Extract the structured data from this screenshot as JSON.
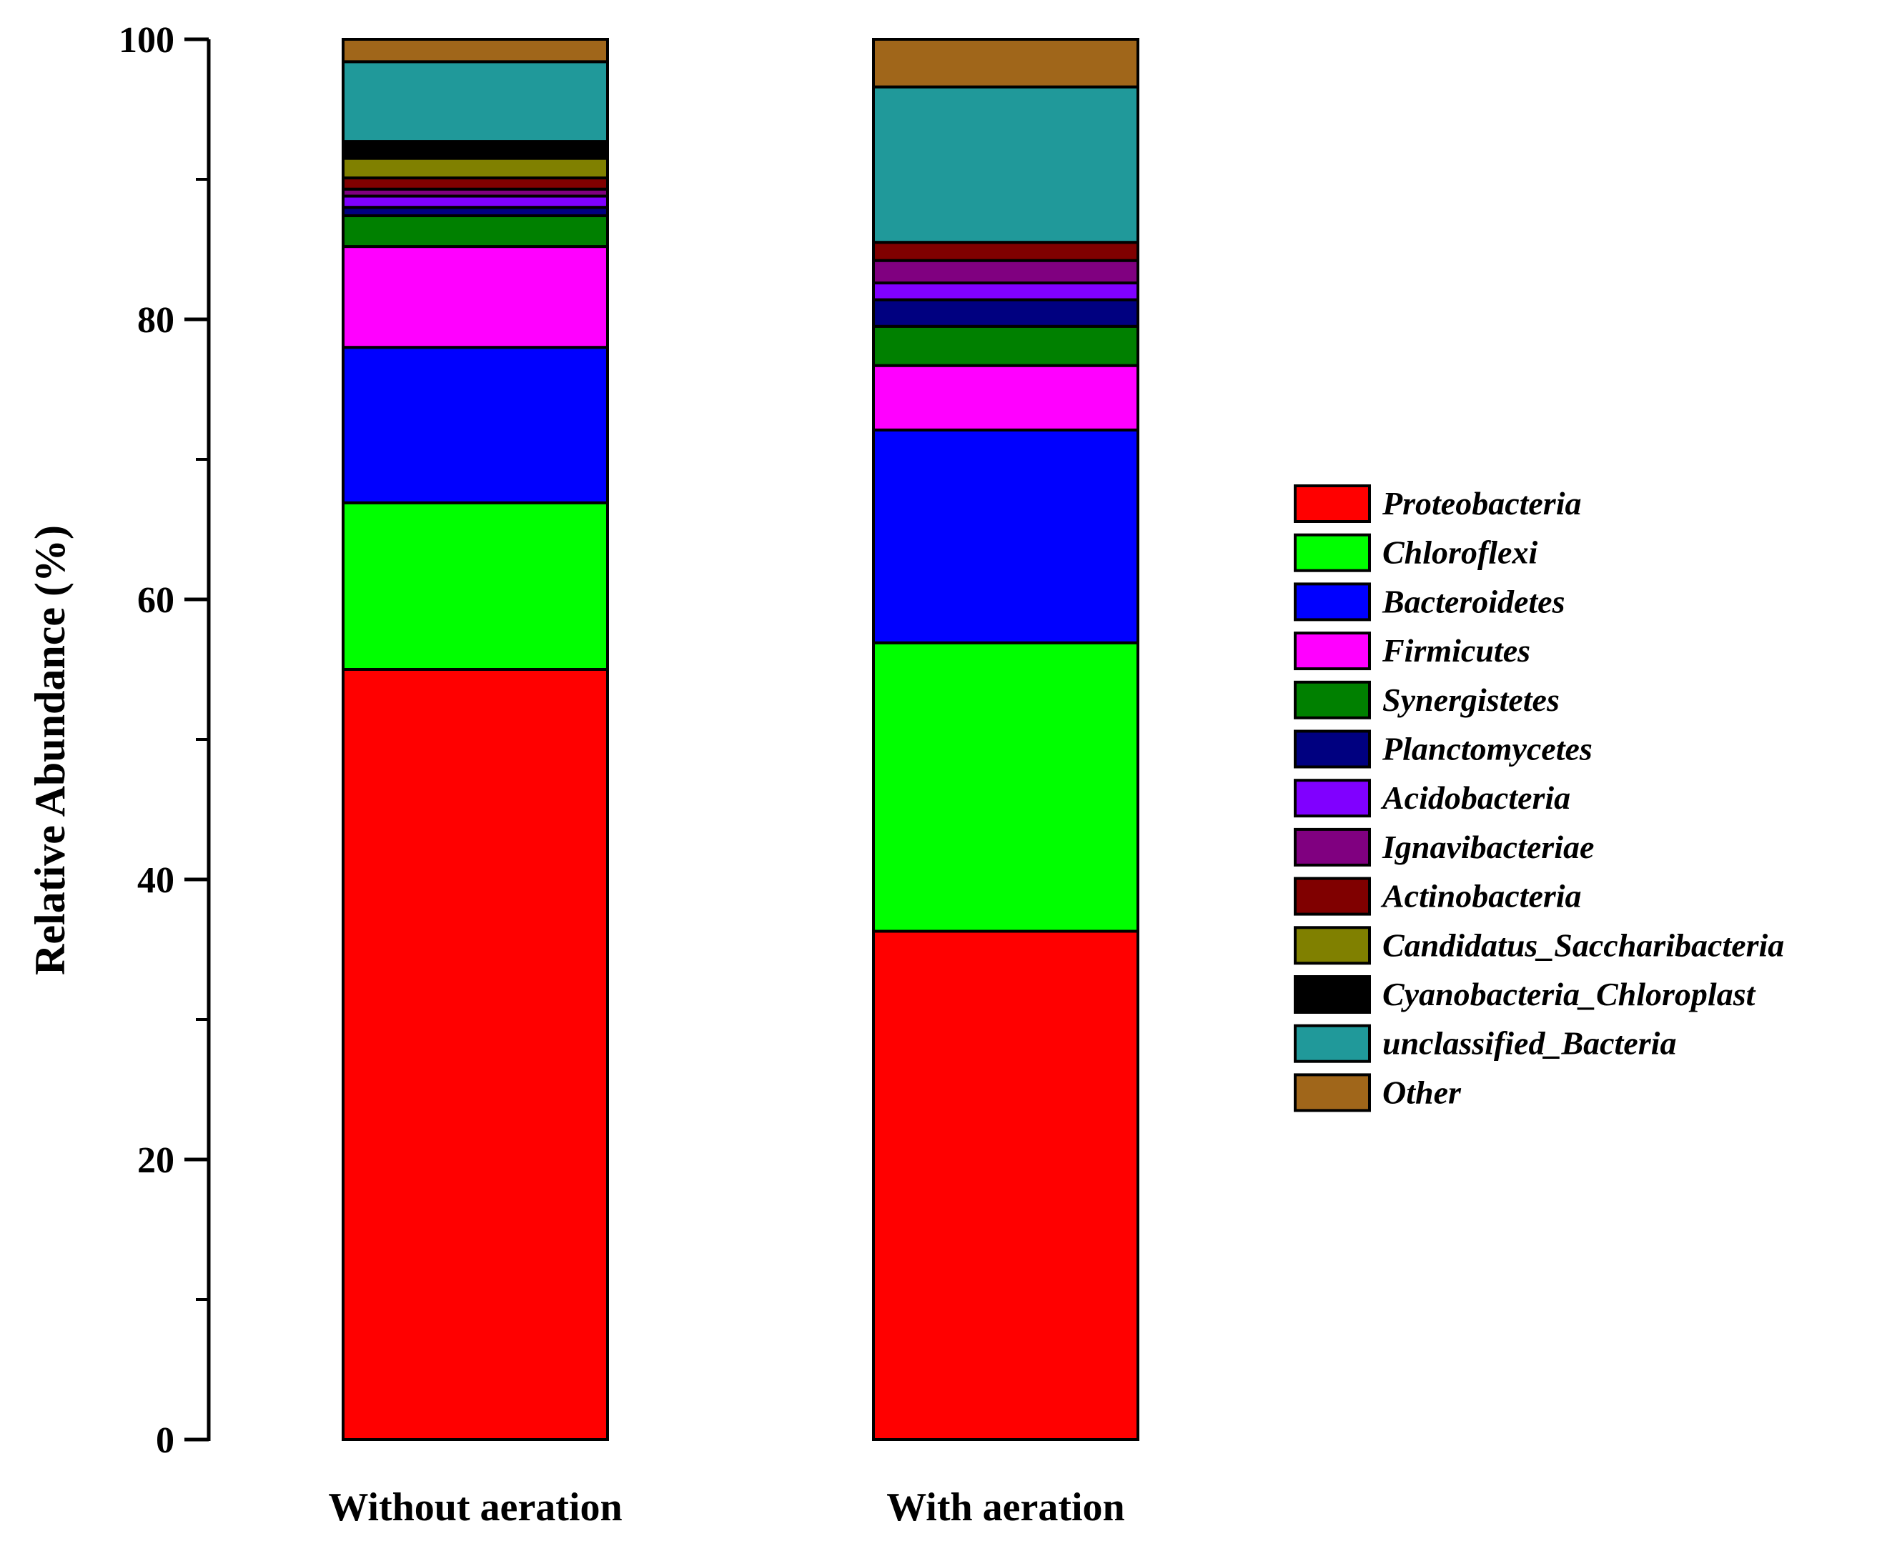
{
  "chart_data": {
    "type": "bar",
    "stacked": true,
    "title": "",
    "xlabel": "",
    "ylabel": "Relative Abundance (%)",
    "ylim": [
      0,
      100
    ],
    "yticks": [
      0,
      20,
      40,
      60,
      80,
      100
    ],
    "categories": [
      "Without aeration",
      "With aeration"
    ],
    "series": [
      {
        "name": "Proteobacteria",
        "color": "#FF0000",
        "values": [
          55.0,
          36.3
        ]
      },
      {
        "name": "Chloroflexi",
        "color": "#00FF00",
        "values": [
          11.9,
          20.6
        ]
      },
      {
        "name": "Bacteroidetes",
        "color": "#0000FF",
        "values": [
          11.1,
          15.2
        ]
      },
      {
        "name": "Firmicutes",
        "color": "#FF00FF",
        "values": [
          7.2,
          4.6
        ]
      },
      {
        "name": "Synergistetes",
        "color": "#008000",
        "values": [
          2.2,
          2.8
        ]
      },
      {
        "name": "Planctomycetes",
        "color": "#000080",
        "values": [
          0.6,
          1.9
        ]
      },
      {
        "name": "Acidobacteria",
        "color": "#8000FF",
        "values": [
          0.8,
          1.2
        ]
      },
      {
        "name": "Ignavibacteriae",
        "color": "#800080",
        "values": [
          0.5,
          1.6
        ]
      },
      {
        "name": "Actinobacteria",
        "color": "#800000",
        "values": [
          0.8,
          1.3
        ]
      },
      {
        "name": "Candidatus_Saccharibacteria",
        "color": "#808000",
        "values": [
          1.4,
          0.0
        ]
      },
      {
        "name": "Cyanobacteria_Chloroplast",
        "color": "#000000",
        "values": [
          1.2,
          0.0
        ]
      },
      {
        "name": "unclassified_Bacteria",
        "color": "#20999A",
        "values": [
          5.7,
          11.1
        ]
      },
      {
        "name": "Other",
        "color": "#A0661A",
        "values": [
          1.6,
          3.4
        ]
      }
    ]
  }
}
